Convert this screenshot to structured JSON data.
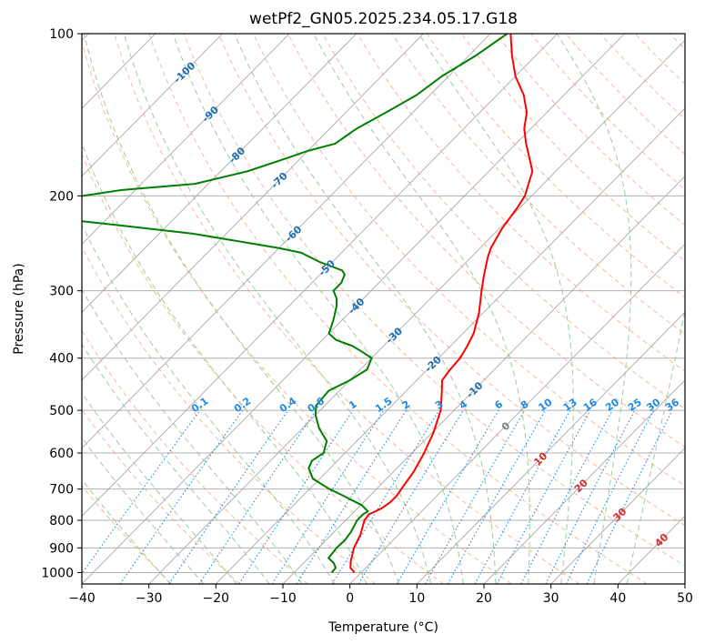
{
  "chart_data": {
    "type": "line",
    "title": "wetPf2_GN05.2025.234.05.17.G18",
    "xlabel": "Temperature (°C)",
    "ylabel": "Pressure (hPa)",
    "xlim": [
      -40,
      50
    ],
    "ylim": [
      1050,
      100
    ],
    "y_scale": "log",
    "grid": true,
    "x_ticks": [
      "−40",
      "−30",
      "−20",
      "−10",
      "0",
      "10",
      "20",
      "30",
      "40",
      "50"
    ],
    "x_tick_values": [
      -40,
      -30,
      -20,
      -10,
      0,
      10,
      20,
      30,
      40,
      50
    ],
    "y_ticks": [
      "100",
      "200",
      "300",
      "400",
      "500",
      "600",
      "700",
      "800",
      "900",
      "1000"
    ],
    "y_tick_values": [
      100,
      200,
      300,
      400,
      500,
      600,
      700,
      800,
      900,
      1000
    ],
    "series": [
      {
        "role": "temperature",
        "color": "#ff0000",
        "points": [
          [
            1000,
            -1.0
          ],
          [
            980,
            -2.3
          ],
          [
            950,
            -3.3
          ],
          [
            900,
            -4.7
          ],
          [
            850,
            -5.7
          ],
          [
            800,
            -7.2
          ],
          [
            780,
            -7.4
          ],
          [
            760,
            -6.4
          ],
          [
            740,
            -6.0
          ],
          [
            720,
            -6.0
          ],
          [
            700,
            -6.3
          ],
          [
            650,
            -7.0
          ],
          [
            600,
            -8.2
          ],
          [
            550,
            -9.8
          ],
          [
            500,
            -12.0
          ],
          [
            460,
            -14.7
          ],
          [
            440,
            -16.2
          ],
          [
            420,
            -16.6
          ],
          [
            400,
            -16.8
          ],
          [
            380,
            -17.5
          ],
          [
            360,
            -18.4
          ],
          [
            330,
            -20.6
          ],
          [
            300,
            -23.5
          ],
          [
            280,
            -25.5
          ],
          [
            260,
            -27.5
          ],
          [
            250,
            -28.4
          ],
          [
            230,
            -29.6
          ],
          [
            210,
            -30.4
          ],
          [
            200,
            -31.0
          ],
          [
            180,
            -33.5
          ],
          [
            160,
            -38.5
          ],
          [
            150,
            -41.0
          ],
          [
            140,
            -43.0
          ],
          [
            130,
            -46.0
          ],
          [
            120,
            -50.0
          ],
          [
            110,
            -53.5
          ],
          [
            100,
            -57.0
          ]
        ]
      },
      {
        "role": "dewpoint",
        "color": "#008000",
        "points": [
          [
            1000,
            -4.4
          ],
          [
            980,
            -4.5
          ],
          [
            960,
            -5.5
          ],
          [
            940,
            -7.0
          ],
          [
            900,
            -7.3
          ],
          [
            870,
            -7.2
          ],
          [
            840,
            -7.5
          ],
          [
            800,
            -8.3
          ],
          [
            780,
            -8.3
          ],
          [
            770,
            -8.0
          ],
          [
            750,
            -9.8
          ],
          [
            720,
            -14.0
          ],
          [
            700,
            -17.0
          ],
          [
            670,
            -21.0
          ],
          [
            640,
            -23.2
          ],
          [
            620,
            -23.8
          ],
          [
            600,
            -23.2
          ],
          [
            570,
            -24.5
          ],
          [
            540,
            -27.5
          ],
          [
            510,
            -30.0
          ],
          [
            490,
            -31.3
          ],
          [
            460,
            -31.6
          ],
          [
            440,
            -30.0
          ],
          [
            420,
            -29.0
          ],
          [
            400,
            -30.0
          ],
          [
            390,
            -32.2
          ],
          [
            380,
            -34.6
          ],
          [
            370,
            -38.0
          ],
          [
            360,
            -40.0
          ],
          [
            340,
            -41.3
          ],
          [
            320,
            -42.9
          ],
          [
            310,
            -44.0
          ],
          [
            300,
            -45.6
          ],
          [
            290,
            -45.6
          ],
          [
            280,
            -46.3
          ],
          [
            275,
            -47.3
          ],
          [
            265,
            -52.0
          ],
          [
            255,
            -56.0
          ],
          [
            250,
            -60.0
          ],
          [
            235,
            -75.0
          ],
          [
            225,
            -90.0
          ],
          [
            220,
            -98.0
          ],
          [
            210,
            -100.0
          ],
          [
            205,
            -101.0
          ],
          [
            200,
            -97.0
          ],
          [
            195,
            -92.0
          ],
          [
            190,
            -82.0
          ],
          [
            180,
            -76.0
          ],
          [
            170,
            -72.0
          ],
          [
            165,
            -70.0
          ],
          [
            160,
            -67.0
          ],
          [
            150,
            -66.0
          ],
          [
            140,
            -64.0
          ],
          [
            130,
            -62.0
          ],
          [
            120,
            -61.0
          ],
          [
            110,
            -59.0
          ],
          [
            100,
            -57.5
          ]
        ]
      }
    ],
    "moist_adiabat_labels": [
      "-100",
      "-90",
      "-80",
      "-70",
      "-60",
      "-50",
      "-40",
      "-30",
      "-20",
      "-10"
    ],
    "moist_adiabat_values": [
      -100,
      -90,
      -80,
      -70,
      -60,
      -50,
      -40,
      -30,
      -20,
      -10
    ],
    "mixing_ratio_labels": [
      "0.1",
      "0.2",
      "0.4",
      "0.6",
      "1",
      "1.5",
      "2",
      "3",
      "4",
      "6",
      "8",
      "10",
      "13",
      "16",
      "20",
      "25",
      "30",
      "36"
    ],
    "mixing_ratio_values": [
      0.1,
      0.2,
      0.4,
      0.6,
      1,
      1.5,
      2,
      3,
      4,
      6,
      8,
      10,
      13,
      16,
      20,
      25,
      30,
      36
    ],
    "warm_labels": [
      "0",
      "10",
      "20",
      "30",
      "40"
    ],
    "warm_values": [
      0,
      10,
      20,
      30,
      40
    ],
    "colors": {
      "temperature": "#ff0000",
      "dewpoint": "#008000",
      "isobar": "#b0b0b0",
      "isotherm": "#a0a0a0",
      "dry_adiabat": "#f4a582",
      "moist_adiabat": "#8fc98f",
      "mixing_ratio": "#1e88e5",
      "moist_label": "#1f6fb0",
      "warm_label": "#d32f2f",
      "zero_label": "#808080"
    }
  }
}
